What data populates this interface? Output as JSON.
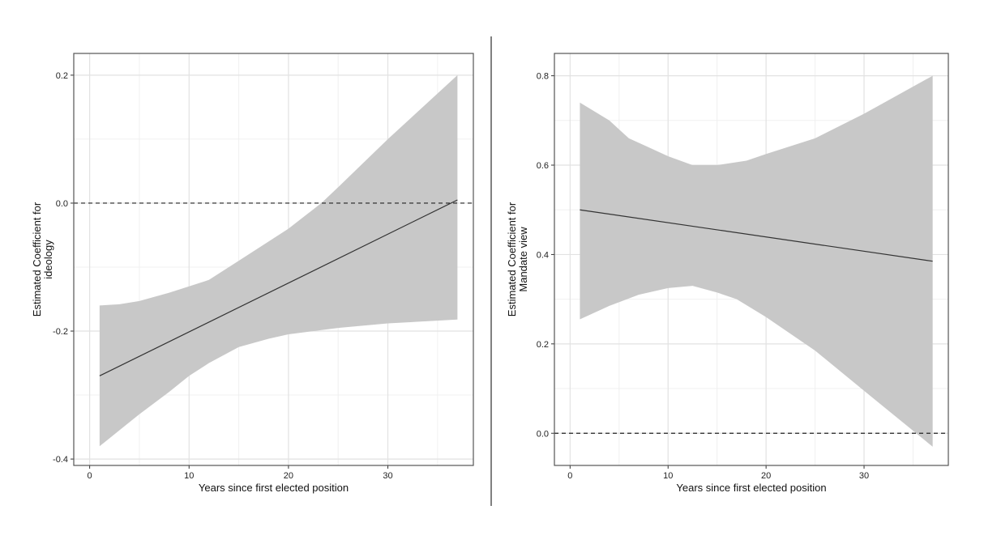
{
  "colors": {
    "band": "#c8c8c8",
    "line": "#333333",
    "grid": "#e2e2e2",
    "frame": "#555555"
  },
  "chart_data": [
    {
      "type": "line",
      "title": "",
      "xlabel": "Years since first elected position",
      "ylabel_lines": [
        "Estimated Coefficient for",
        "ideology"
      ],
      "xlim": [
        -1.6,
        38.6
      ],
      "ylim": [
        -0.41,
        0.234
      ],
      "xticks": [
        0,
        10,
        20,
        30
      ],
      "xtick_labels": [
        "0",
        "10",
        "20",
        "30"
      ],
      "yticks": [
        0.2,
        0.0,
        -0.2,
        -0.4
      ],
      "ytick_labels": [
        "0.2",
        "0.0",
        "-0.2",
        "-0.4"
      ],
      "reference_line": 0.0,
      "grid": true,
      "estimate": {
        "x": [
          1,
          37
        ],
        "y": [
          -0.27,
          0.005
        ]
      },
      "ci_upper": {
        "x": [
          1,
          3,
          5,
          8,
          10,
          12,
          15,
          18,
          20,
          23.3,
          25,
          30,
          37
        ],
        "y": [
          -0.16,
          -0.158,
          -0.153,
          -0.14,
          -0.13,
          -0.12,
          -0.09,
          -0.06,
          -0.04,
          0.0,
          0.025,
          0.1,
          0.2
        ]
      },
      "ci_lower": {
        "x": [
          1,
          3,
          5,
          8,
          10,
          12,
          15,
          18,
          20,
          25,
          30,
          37
        ],
        "y": [
          -0.38,
          -0.355,
          -0.33,
          -0.295,
          -0.27,
          -0.25,
          -0.225,
          -0.212,
          -0.205,
          -0.195,
          -0.188,
          -0.182
        ]
      }
    },
    {
      "type": "line",
      "title": "",
      "xlabel": "Years since first elected position",
      "ylabel_lines": [
        "Estimated Coefficient for",
        "Mandate view"
      ],
      "xlim": [
        -1.6,
        38.6
      ],
      "ylim": [
        -0.072,
        0.85
      ],
      "xticks": [
        0,
        10,
        20,
        30
      ],
      "xtick_labels": [
        "0",
        "10",
        "20",
        "30"
      ],
      "yticks": [
        0.8,
        0.6,
        0.4,
        0.2,
        0.0
      ],
      "ytick_labels": [
        "0.8",
        "0.6",
        "0.4",
        "0.2",
        "0.0"
      ],
      "reference_line": 0.0,
      "grid": true,
      "estimate": {
        "x": [
          1,
          37
        ],
        "y": [
          0.5,
          0.385
        ]
      },
      "ci_upper": {
        "x": [
          1,
          4,
          6,
          8,
          10,
          12.5,
          15,
          18,
          20,
          25,
          30,
          37
        ],
        "y": [
          0.74,
          0.7,
          0.66,
          0.64,
          0.62,
          0.6,
          0.6,
          0.61,
          0.625,
          0.66,
          0.715,
          0.8
        ]
      },
      "ci_lower": {
        "x": [
          1,
          4,
          7,
          10,
          12.5,
          15,
          17,
          20,
          25,
          30,
          37
        ],
        "y": [
          0.255,
          0.285,
          0.31,
          0.325,
          0.33,
          0.315,
          0.3,
          0.26,
          0.185,
          0.095,
          -0.03
        ]
      }
    }
  ]
}
